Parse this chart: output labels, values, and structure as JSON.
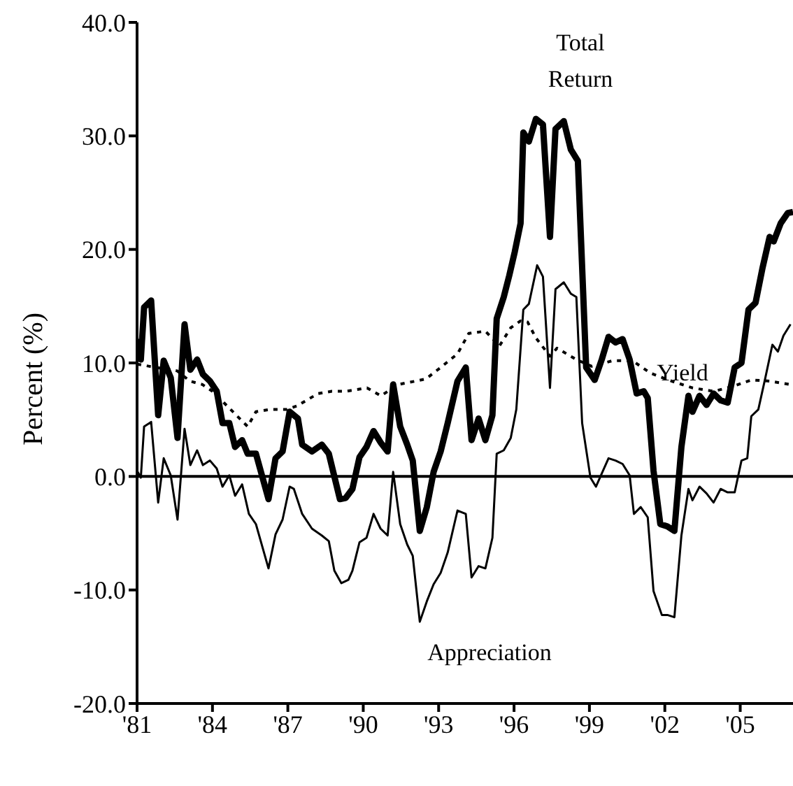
{
  "chart_data": {
    "type": "line",
    "ylabel": "Percent (%)",
    "xlim": [
      1981,
      2007.1
    ],
    "ylim": [
      -20,
      40
    ],
    "yticks": [
      {
        "value": -20,
        "label": "-20.0"
      },
      {
        "value": -10,
        "label": "-10.0"
      },
      {
        "value": 0,
        "label": "0.0"
      },
      {
        "value": 10,
        "label": "10.0"
      },
      {
        "value": 20,
        "label": "20.0"
      },
      {
        "value": 30,
        "label": "30.0"
      },
      {
        "value": 40,
        "label": "40.0"
      }
    ],
    "xticks": [
      {
        "value": 1981,
        "label": "'81"
      },
      {
        "value": 1984,
        "label": "'84"
      },
      {
        "value": 1987,
        "label": "'87"
      },
      {
        "value": 1990,
        "label": "'90"
      },
      {
        "value": 1993,
        "label": "'93"
      },
      {
        "value": 1996,
        "label": "'96"
      },
      {
        "value": 1999,
        "label": "'99"
      },
      {
        "value": 2002,
        "label": "'02"
      },
      {
        "value": 2005,
        "label": "'05"
      }
    ],
    "marker": "none",
    "ref_lines": [
      {
        "axis": "y",
        "value": 0,
        "color": "#000000",
        "line_style": "solid"
      }
    ],
    "series": [
      {
        "name": "Total Return",
        "color": "#000000",
        "line_style": "solid",
        "x": [
          1981.0,
          1981.15,
          1981.28,
          1981.56,
          1981.84,
          1982.06,
          1982.34,
          1982.61,
          1982.89,
          1983.12,
          1983.39,
          1983.62,
          1983.9,
          1984.17,
          1984.4,
          1984.67,
          1984.9,
          1985.18,
          1985.4,
          1985.73,
          1986.23,
          1986.51,
          1986.79,
          1987.07,
          1987.4,
          1987.57,
          1987.96,
          1988.35,
          1988.63,
          1989.07,
          1989.3,
          1989.57,
          1989.85,
          1990.13,
          1990.41,
          1990.69,
          1990.97,
          1991.19,
          1991.47,
          1991.75,
          1991.97,
          1992.25,
          1992.53,
          1992.8,
          1993.08,
          1993.36,
          1993.75,
          1994.08,
          1994.31,
          1994.59,
          1994.86,
          1995.14,
          1995.31,
          1995.59,
          1995.81,
          1996.03,
          1996.26,
          1996.37,
          1996.59,
          1996.87,
          1997.15,
          1997.43,
          1997.65,
          1997.98,
          1998.26,
          1998.54,
          1998.87,
          1999.21,
          1999.49,
          1999.76,
          2000.04,
          2000.32,
          2000.6,
          2000.88,
          2001.16,
          2001.32,
          2001.55,
          2001.82,
          2002.1,
          2002.38,
          2002.66,
          2002.94,
          2003.1,
          2003.38,
          2003.66,
          2003.94,
          2004.22,
          2004.5,
          2004.78,
          2005.05,
          2005.33,
          2005.61,
          2005.89,
          2006.17,
          2006.33,
          2006.61,
          2006.89,
          2007.1
        ],
        "values": [
          12.1,
          10.3,
          14.9,
          15.5,
          5.4,
          10.2,
          8.7,
          3.4,
          13.4,
          9.4,
          10.3,
          9.0,
          8.4,
          7.5,
          4.7,
          4.7,
          2.6,
          3.2,
          2.0,
          2.0,
          -2.0,
          1.6,
          2.2,
          5.7,
          5.1,
          2.8,
          2.2,
          2.8,
          2.0,
          -2.0,
          -1.9,
          -1.1,
          1.7,
          2.6,
          4.0,
          3.0,
          2.2,
          8.1,
          4.4,
          2.8,
          1.4,
          -4.8,
          -2.7,
          0.4,
          2.2,
          4.7,
          8.4,
          9.6,
          3.2,
          5.1,
          3.2,
          5.4,
          13.9,
          15.8,
          17.7,
          19.8,
          22.3,
          30.3,
          29.5,
          31.5,
          31.0,
          21.1,
          30.6,
          31.3,
          28.8,
          27.8,
          9.6,
          8.5,
          10.3,
          12.3,
          11.8,
          12.1,
          10.3,
          7.3,
          7.5,
          6.9,
          0.5,
          -4.2,
          -4.4,
          -4.8,
          2.6,
          7.1,
          5.7,
          7.1,
          6.3,
          7.3,
          6.7,
          6.5,
          9.6,
          10.0,
          14.7,
          15.3,
          18.4,
          21.1,
          20.7,
          22.3,
          23.2,
          23.3
        ]
      },
      {
        "name": "Yield",
        "color": "#000000",
        "line_style": "dotted",
        "x": [
          1981.0,
          1981.5,
          1982.6,
          1983.1,
          1983.6,
          1984.0,
          1985.4,
          1985.73,
          1986.28,
          1986.95,
          1987.35,
          1988.2,
          1988.75,
          1989.3,
          1990.15,
          1990.7,
          1991.4,
          1992.08,
          1992.5,
          1993.08,
          1993.75,
          1994.2,
          1994.86,
          1995.42,
          1995.87,
          1996.26,
          1996.54,
          1996.87,
          1997.43,
          1997.71,
          1998.48,
          1999.09,
          1999.93,
          2000.71,
          2001.43,
          2002.27,
          2003.1,
          2003.94,
          2004.67,
          2005.44,
          2006.17,
          2007.0
        ],
        "values": [
          9.9,
          9.7,
          9.3,
          8.4,
          8.1,
          7.5,
          4.4,
          5.7,
          5.9,
          5.9,
          6.2,
          7.3,
          7.5,
          7.5,
          7.8,
          7.1,
          8.1,
          8.4,
          8.6,
          9.6,
          10.8,
          12.6,
          12.8,
          11.5,
          13.1,
          13.7,
          13.6,
          12.2,
          10.6,
          11.3,
          10.3,
          9.7,
          10.2,
          10.2,
          9.1,
          8.4,
          7.8,
          7.5,
          7.9,
          8.5,
          8.4,
          8.1
        ]
      },
      {
        "name": "Appreciation",
        "color": "#000000",
        "line_style": "solid",
        "x": [
          1981.0,
          1981.15,
          1981.28,
          1981.56,
          1981.84,
          1982.06,
          1982.34,
          1982.61,
          1982.89,
          1983.12,
          1983.39,
          1983.62,
          1983.9,
          1984.17,
          1984.4,
          1984.67,
          1984.9,
          1985.18,
          1985.45,
          1985.73,
          1986.23,
          1986.51,
          1986.79,
          1987.07,
          1987.24,
          1987.57,
          1987.96,
          1988.35,
          1988.63,
          1988.85,
          1989.13,
          1989.41,
          1989.57,
          1989.85,
          1990.13,
          1990.41,
          1990.69,
          1990.97,
          1991.19,
          1991.47,
          1991.75,
          1991.97,
          1992.25,
          1992.53,
          1992.8,
          1993.08,
          1993.36,
          1993.75,
          1994.08,
          1994.31,
          1994.59,
          1994.86,
          1995.14,
          1995.31,
          1995.59,
          1995.87,
          1996.09,
          1996.37,
          1996.59,
          1996.92,
          1997.15,
          1997.43,
          1997.65,
          1997.98,
          1998.26,
          1998.48,
          1998.71,
          1999.04,
          1999.26,
          1999.54,
          1999.76,
          2000.04,
          2000.32,
          2000.6,
          2000.77,
          2001.04,
          2001.32,
          2001.55,
          2001.88,
          2002.1,
          2002.38,
          2002.66,
          2002.94,
          2003.1,
          2003.38,
          2003.66,
          2003.94,
          2004.22,
          2004.5,
          2004.78,
          2005.05,
          2005.28,
          2005.44,
          2005.72,
          2006.0,
          2006.28,
          2006.5,
          2006.72,
          2007.0
        ],
        "values": [
          0.5,
          -0.1,
          4.4,
          4.8,
          -2.3,
          1.6,
          0.1,
          -3.8,
          4.2,
          1.0,
          2.3,
          1.0,
          1.4,
          0.7,
          -0.9,
          0.1,
          -1.7,
          -0.7,
          -3.3,
          -4.2,
          -8.1,
          -5.1,
          -3.8,
          -0.9,
          -1.1,
          -3.3,
          -4.6,
          -5.2,
          -5.7,
          -8.3,
          -9.4,
          -9.1,
          -8.3,
          -5.8,
          -5.4,
          -3.3,
          -4.6,
          -5.2,
          0.4,
          -4.2,
          -6.0,
          -7.0,
          -12.8,
          -11.0,
          -9.5,
          -8.5,
          -6.7,
          -3.0,
          -3.3,
          -8.9,
          -7.9,
          -8.1,
          -5.4,
          2.0,
          2.3,
          3.4,
          5.9,
          14.7,
          15.2,
          18.6,
          17.6,
          7.8,
          16.5,
          17.1,
          16.1,
          15.8,
          4.7,
          -0.1,
          -0.9,
          0.5,
          1.6,
          1.4,
          1.1,
          0.1,
          -3.3,
          -2.7,
          -3.6,
          -10.1,
          -12.2,
          -12.2,
          -12.4,
          -5.2,
          -1.1,
          -2.1,
          -0.9,
          -1.5,
          -2.3,
          -1.1,
          -1.4,
          -1.4,
          1.4,
          1.6,
          5.3,
          5.9,
          8.7,
          11.6,
          11.0,
          12.4,
          13.4
        ]
      }
    ]
  }
}
